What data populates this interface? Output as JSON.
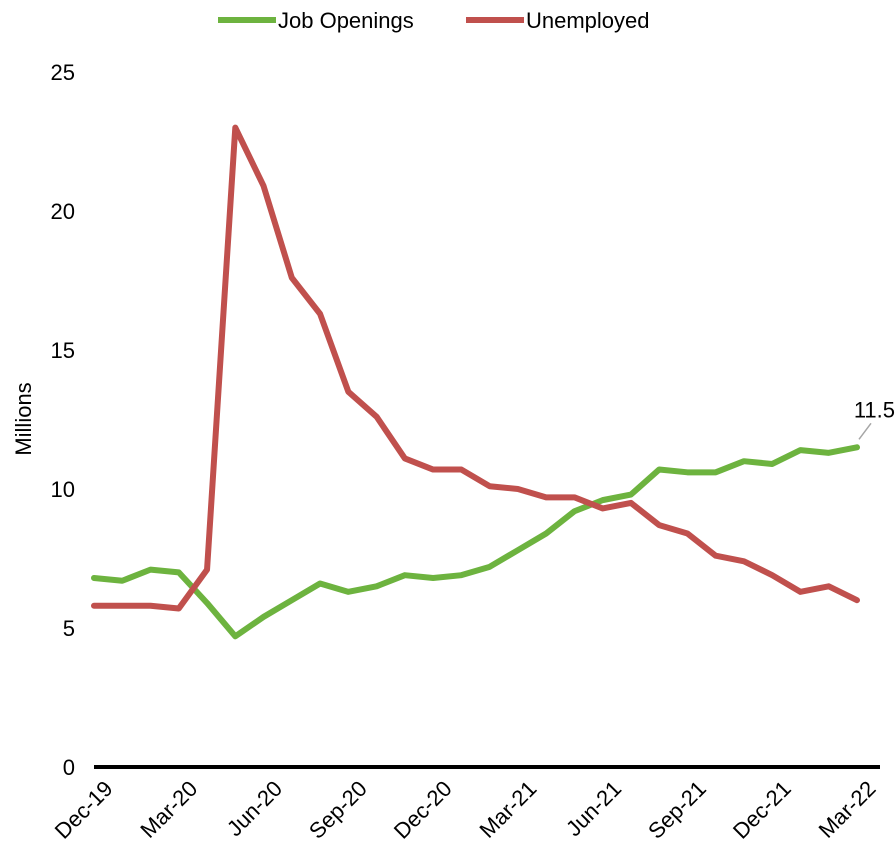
{
  "chart_data": {
    "type": "line",
    "ylabel": "Millions",
    "ylim": [
      0,
      25
    ],
    "yticks": [
      "0",
      "5",
      "10",
      "15",
      "20",
      "25"
    ],
    "xticks": [
      "Dec-19",
      "Mar-20",
      "Jun-20",
      "Sep-20",
      "Dec-20",
      "Mar-21",
      "Jun-21",
      "Sep-21",
      "Dec-21",
      "Mar-22"
    ],
    "x": [
      "Dec-19",
      "Jan-20",
      "Feb-20",
      "Mar-20",
      "Apr-20",
      "May-20",
      "Jun-20",
      "Jul-20",
      "Aug-20",
      "Sep-20",
      "Oct-20",
      "Nov-20",
      "Dec-20",
      "Jan-21",
      "Feb-21",
      "Mar-21",
      "Apr-21",
      "May-21",
      "Jun-21",
      "Jul-21",
      "Aug-21",
      "Sep-21",
      "Oct-21",
      "Nov-21",
      "Dec-21",
      "Jan-22",
      "Feb-22",
      "Mar-22"
    ],
    "legend_position": "top-center",
    "series": [
      {
        "name": "Job Openings",
        "color": "#6db33f",
        "values": [
          6.8,
          6.7,
          7.1,
          7.0,
          5.9,
          4.7,
          5.4,
          6.0,
          6.6,
          6.3,
          6.5,
          6.9,
          6.8,
          6.9,
          7.2,
          7.8,
          8.4,
          9.2,
          9.6,
          9.8,
          10.7,
          10.6,
          10.6,
          11.0,
          10.9,
          11.4,
          11.3,
          11.5
        ]
      },
      {
        "name": "Unemployed",
        "color": "#c0504d",
        "values": [
          5.8,
          5.8,
          5.8,
          5.7,
          7.1,
          23.0,
          20.9,
          17.6,
          16.3,
          13.5,
          12.6,
          11.1,
          10.7,
          10.7,
          10.1,
          10.0,
          9.7,
          9.7,
          9.3,
          9.5,
          8.7,
          8.4,
          7.6,
          7.4,
          6.9,
          6.3,
          6.5,
          6.0
        ]
      }
    ],
    "annotations": [
      {
        "text": "11.5",
        "series": "Job Openings",
        "point": "Mar-22"
      }
    ]
  }
}
